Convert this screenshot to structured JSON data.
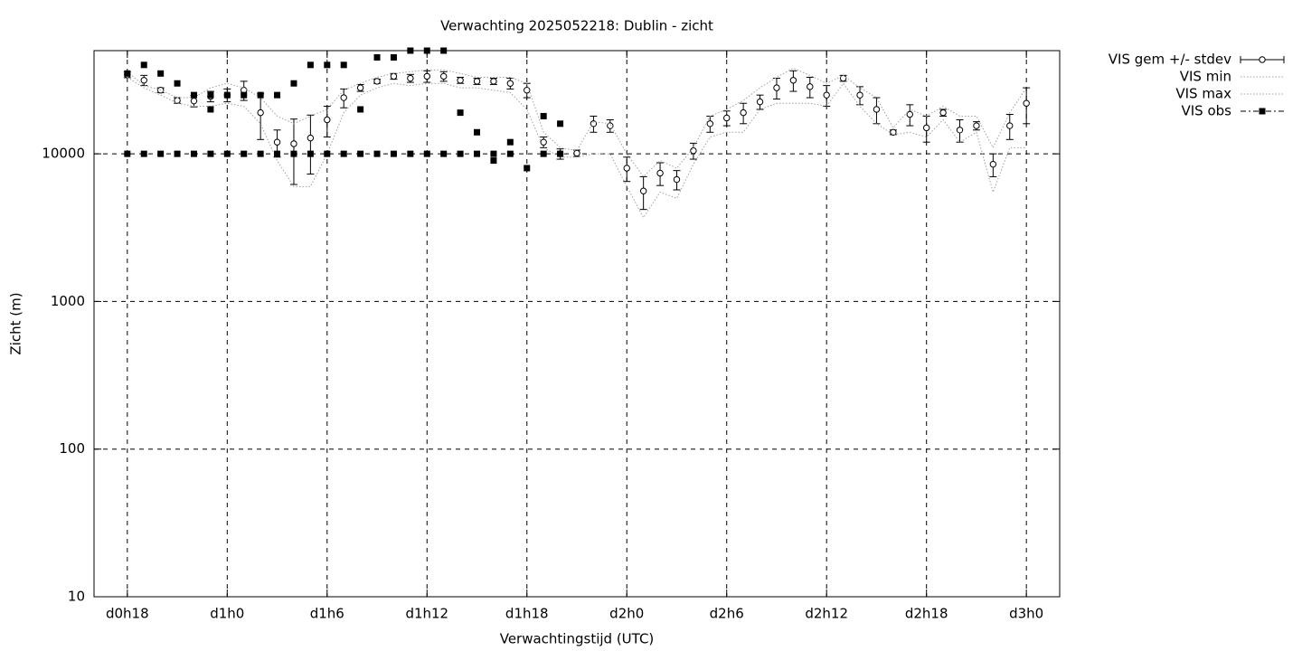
{
  "chart_data": {
    "type": "line",
    "title": "Verwachting 2025052218: Dublin - zicht",
    "x_label": "Verwachtingstijd (UTC)",
    "y_label": "Zicht (m)",
    "x": [
      18,
      19,
      20,
      21,
      22,
      23,
      24,
      25,
      26,
      27,
      28,
      29,
      30,
      31,
      32,
      33,
      34,
      35,
      36,
      37,
      38,
      39,
      40,
      41,
      42,
      43,
      44,
      45,
      46,
      47,
      48,
      49,
      50,
      51,
      52,
      53,
      54,
      55,
      56,
      57,
      58,
      59,
      60,
      61,
      62,
      63,
      64,
      65,
      66,
      67,
      68,
      69,
      70,
      71,
      72
    ],
    "xlim": [
      16,
      74
    ],
    "xticks": [
      {
        "value": 18,
        "label": "d0h18"
      },
      {
        "value": 24,
        "label": "d1h0"
      },
      {
        "value": 30,
        "label": "d1h6"
      },
      {
        "value": 36,
        "label": "d1h12"
      },
      {
        "value": 42,
        "label": "d1h18"
      },
      {
        "value": 48,
        "label": "d2h0"
      },
      {
        "value": 54,
        "label": "d2h6"
      },
      {
        "value": 60,
        "label": "d2h12"
      },
      {
        "value": 66,
        "label": "d2h18"
      },
      {
        "value": 72,
        "label": "d3h0"
      }
    ],
    "ylim": [
      10,
      50000
    ],
    "yticks": [
      10,
      100,
      1000,
      10000
    ],
    "log_y": true,
    "grid": true,
    "legend": "outside-right",
    "series": [
      {
        "name": "VIS gem +/- stdev",
        "color": "#000000",
        "values": [
          34300,
          31500,
          27000,
          23000,
          22800,
          24500,
          25000,
          27000,
          19000,
          12000,
          11700,
          12800,
          17000,
          24000,
          28000,
          31000,
          33500,
          32500,
          33500,
          33500,
          31500,
          31000,
          31000,
          30000,
          27000,
          12000,
          10000,
          10100,
          16000,
          15500,
          8000,
          5600,
          7400,
          6700,
          10500,
          16000,
          17500,
          19000,
          22500,
          28000,
          31500,
          28500,
          25000,
          32500,
          25000,
          20000,
          14000,
          18500,
          15000,
          19000,
          14500,
          15500,
          8500,
          15500,
          22000
        ],
        "errors": [
          1500,
          2500,
          1000,
          1000,
          2000,
          2000,
          2500,
          4000,
          6500,
          2500,
          5500,
          5500,
          4000,
          3500,
          1500,
          1000,
          1500,
          2000,
          3000,
          2500,
          1500,
          1500,
          1500,
          2500,
          3000,
          1000,
          800,
          500,
          2000,
          1500,
          1500,
          1400,
          1300,
          1000,
          1300,
          2000,
          2000,
          3000,
          2500,
          4500,
          5000,
          4500,
          4000,
          1500,
          3500,
          4000,
          500,
          3000,
          3000,
          1000,
          2500,
          1000,
          1500,
          3000,
          6000
        ]
      },
      {
        "name": "VIS min",
        "color": "#a0a0a0",
        "values": [
          33000,
          28000,
          25000,
          22000,
          21000,
          21000,
          22000,
          21000,
          16000,
          9000,
          6000,
          6000,
          10000,
          19000,
          25000,
          28000,
          30000,
          29000,
          30000,
          30000,
          28000,
          28000,
          27000,
          26000,
          20000,
          11000,
          9500,
          9500,
          10000,
          10000,
          6000,
          3700,
          5500,
          5000,
          8500,
          13000,
          14000,
          14000,
          20000,
          22000,
          22000,
          22000,
          21000,
          30000,
          21000,
          16000,
          13500,
          14000,
          13000,
          17000,
          12000,
          14000,
          5500,
          11000,
          11000
        ]
      },
      {
        "name": "VIS max",
        "color": "#a0a0a0",
        "values": [
          36000,
          29000,
          27000,
          24000,
          24000,
          28000,
          30000,
          28000,
          24000,
          18000,
          16000,
          18000,
          20000,
          27000,
          30000,
          33000,
          35000,
          36000,
          37000,
          37000,
          35000,
          33000,
          33000,
          33000,
          30000,
          14000,
          11000,
          10500,
          16500,
          16000,
          10000,
          7000,
          9000,
          8000,
          11000,
          18000,
          20000,
          23000,
          28000,
          33000,
          38000,
          34000,
          30000,
          34000,
          28000,
          24000,
          15000,
          20000,
          18000,
          21000,
          18000,
          18000,
          11000,
          19000,
          28000
        ]
      },
      {
        "name": "VIS obs",
        "color": "#000000",
        "x": [
          18,
          18,
          19,
          19,
          20,
          20,
          21,
          21,
          22,
          22,
          23,
          23,
          23,
          24,
          24,
          25,
          25,
          26,
          26,
          27,
          27,
          28,
          28,
          29,
          29,
          30,
          30,
          31,
          31,
          32,
          32,
          33,
          33,
          34,
          34,
          35,
          35,
          36,
          36,
          37,
          37,
          38,
          38,
          39,
          39,
          40,
          40,
          41,
          41,
          42,
          43,
          43,
          44,
          44
        ],
        "values": [
          35000,
          10000,
          40000,
          10000,
          35000,
          10000,
          30000,
          10000,
          25000,
          10000,
          25000,
          20000,
          10000,
          25000,
          10000,
          25000,
          10000,
          25000,
          10000,
          25000,
          10000,
          30000,
          10000,
          40000,
          10000,
          40000,
          10000,
          40000,
          10000,
          20000,
          10000,
          45000,
          10000,
          45000,
          10000,
          50000,
          10000,
          50000,
          10000,
          50000,
          10000,
          19000,
          10000,
          14000,
          10000,
          10000,
          9000,
          12000,
          10000,
          8000,
          18000,
          10000,
          16000,
          10000
        ]
      }
    ]
  }
}
